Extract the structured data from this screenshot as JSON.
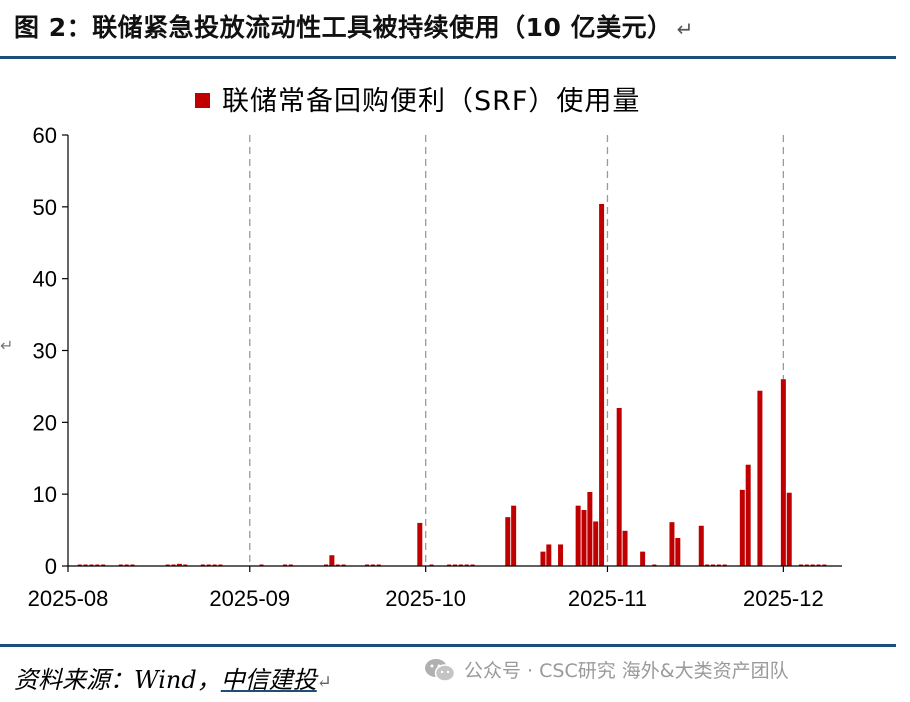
{
  "figure": {
    "title": "图 2：联储紧急投放流动性工具被持续使用（10 亿美元）",
    "title_return_mark": "↵",
    "source_label": "资料来源：Wind，",
    "source_brand": "中信建投",
    "source_return_mark": "↵",
    "side_mark": "↵",
    "watermark_text": "公众号 · CSC研究 海外&大类资产团队",
    "watermark_icon": "wechat-icon"
  },
  "chart_data": {
    "type": "bar",
    "title": "",
    "xlabel": "",
    "ylabel": "",
    "ylim": [
      0,
      60
    ],
    "yticks": [
      "0",
      "10",
      "20",
      "30",
      "40",
      "50",
      "60"
    ],
    "xlim": [
      "2025-08-01",
      "2025-12-11"
    ],
    "xticks": [
      "2025-08",
      "2025-09",
      "2025-10",
      "2025-11",
      "2025-12"
    ],
    "vgrid_dates": [
      "2025-09-01",
      "2025-10-01",
      "2025-11-01",
      "2025-12-01"
    ],
    "legend": {
      "position": "top-center"
    },
    "series": [
      {
        "name": "联储常备回购便利（SRF）使用量",
        "color": "#c00000",
        "x": [
          "2025-08-20",
          "2025-09-15",
          "2025-09-30",
          "2025-10-15",
          "2025-10-16",
          "2025-10-21",
          "2025-10-22",
          "2025-10-24",
          "2025-10-27",
          "2025-10-28",
          "2025-10-29",
          "2025-10-30",
          "2025-10-31",
          "2025-11-03",
          "2025-11-04",
          "2025-11-07",
          "2025-11-12",
          "2025-11-13",
          "2025-11-17",
          "2025-11-24",
          "2025-11-25",
          "2025-11-27",
          "2025-12-01",
          "2025-12-02"
        ],
        "values": [
          0.3,
          1.5,
          6.0,
          6.8,
          8.4,
          2.0,
          3.0,
          3.0,
          8.4,
          7.8,
          10.3,
          6.2,
          50.4,
          22.0,
          4.9,
          2.0,
          6.1,
          3.9,
          5.6,
          10.6,
          14.1,
          24.4,
          26.0,
          10.2
        ]
      }
    ],
    "baseline_stub_dates": [
      "2025-08-03",
      "2025-08-04",
      "2025-08-05",
      "2025-08-06",
      "2025-08-07",
      "2025-08-10",
      "2025-08-11",
      "2025-08-12",
      "2025-08-18",
      "2025-08-19",
      "2025-08-21",
      "2025-08-24",
      "2025-08-25",
      "2025-08-26",
      "2025-08-27",
      "2025-09-03",
      "2025-09-07",
      "2025-09-08",
      "2025-09-14",
      "2025-09-16",
      "2025-09-17",
      "2025-09-21",
      "2025-09-22",
      "2025-09-23",
      "2025-10-02",
      "2025-10-05",
      "2025-10-06",
      "2025-10-07",
      "2025-10-08",
      "2025-10-09",
      "2025-11-09",
      "2025-11-18",
      "2025-11-19",
      "2025-11-20",
      "2025-11-21",
      "2025-12-04",
      "2025-12-05",
      "2025-12-06",
      "2025-12-07",
      "2025-12-08"
    ]
  }
}
